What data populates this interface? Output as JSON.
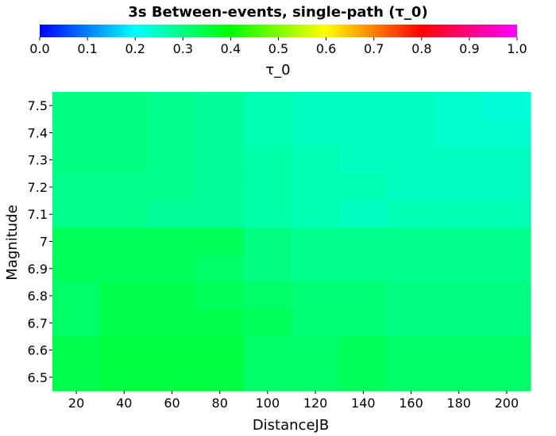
{
  "chart_data": {
    "type": "heatmap",
    "title": "3s Between-events, single-path (τ_0)",
    "xlabel": "DistanceJB",
    "ylabel": "Magnitude",
    "colorbar_label": "τ_0",
    "colorbar_range": [
      0.0,
      1.0
    ],
    "colorbar_ticks": [
      "0.0",
      "0.1",
      "0.2",
      "0.3",
      "0.4",
      "0.5",
      "0.6",
      "0.7",
      "0.8",
      "0.9",
      "1.0"
    ],
    "colormap": [
      "#0000ff",
      "#00ffff",
      "#00ff00",
      "#ffff00",
      "#ff0000",
      "#ff00ff"
    ],
    "x": [
      20,
      40,
      60,
      80,
      100,
      120,
      140,
      160,
      180,
      200
    ],
    "x_ticks": [
      "20",
      "40",
      "60",
      "80",
      "100",
      "120",
      "140",
      "160",
      "180",
      "200"
    ],
    "y": [
      7.5,
      7.4,
      7.3,
      7.2,
      7.1,
      7.0,
      6.9,
      6.8,
      6.7,
      6.6,
      6.5
    ],
    "y_ticks": [
      "7.5",
      "7.4",
      "7.3",
      "7.2",
      "7.1",
      "7",
      "6.9",
      "6.8",
      "6.7",
      "6.6",
      "6.5"
    ],
    "xlim": [
      10,
      210
    ],
    "ylim": [
      6.45,
      7.55
    ],
    "z": [
      [
        0.3,
        0.3,
        0.29,
        0.28,
        0.26,
        0.25,
        0.25,
        0.25,
        0.24,
        0.23
      ],
      [
        0.3,
        0.3,
        0.29,
        0.28,
        0.26,
        0.25,
        0.25,
        0.25,
        0.24,
        0.24
      ],
      [
        0.3,
        0.3,
        0.29,
        0.28,
        0.27,
        0.26,
        0.25,
        0.25,
        0.25,
        0.25
      ],
      [
        0.29,
        0.29,
        0.29,
        0.28,
        0.27,
        0.26,
        0.26,
        0.25,
        0.25,
        0.25
      ],
      [
        0.29,
        0.29,
        0.28,
        0.28,
        0.27,
        0.26,
        0.25,
        0.26,
        0.26,
        0.26
      ],
      [
        0.33,
        0.33,
        0.33,
        0.33,
        0.3,
        0.29,
        0.29,
        0.29,
        0.29,
        0.29
      ],
      [
        0.33,
        0.33,
        0.33,
        0.32,
        0.3,
        0.29,
        0.29,
        0.29,
        0.29,
        0.29
      ],
      [
        0.32,
        0.34,
        0.34,
        0.33,
        0.32,
        0.31,
        0.31,
        0.3,
        0.3,
        0.3
      ],
      [
        0.32,
        0.34,
        0.34,
        0.34,
        0.33,
        0.31,
        0.31,
        0.3,
        0.3,
        0.3
      ],
      [
        0.34,
        0.35,
        0.35,
        0.35,
        0.32,
        0.32,
        0.33,
        0.32,
        0.32,
        0.32
      ],
      [
        0.34,
        0.35,
        0.35,
        0.35,
        0.32,
        0.32,
        0.33,
        0.32,
        0.32,
        0.32
      ]
    ]
  }
}
